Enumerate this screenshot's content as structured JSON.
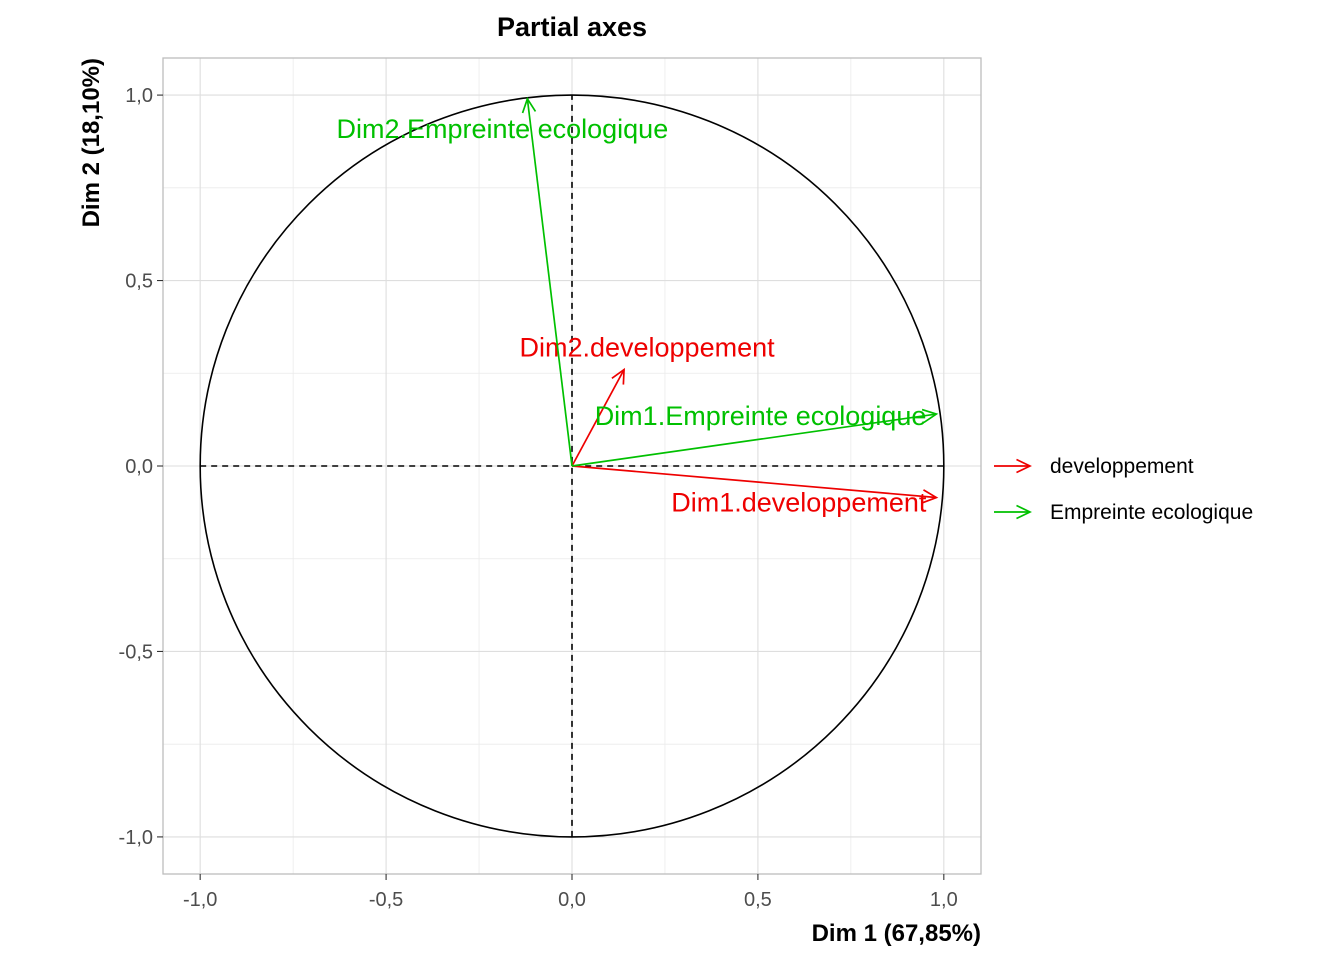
{
  "chart_data": {
    "type": "scatter",
    "subtype": "correlation-circle",
    "title": "Partial axes",
    "xlabel": "Dim 1 (67,85%)",
    "ylabel": "Dim 2 (18,10%)",
    "xlim": [
      -1.1,
      1.1
    ],
    "ylim": [
      -1.1,
      1.1
    ],
    "xticks": [
      -1.0,
      -0.5,
      0.0,
      0.5,
      1.0
    ],
    "yticks": [
      -1.0,
      -0.5,
      0.0,
      0.5,
      1.0
    ],
    "xtick_labels": [
      "-1,0",
      "-0,5",
      "0,0",
      "0,5",
      "1,0"
    ],
    "ytick_labels": [
      "-1,0",
      "-0,5",
      "0,0",
      "0,5",
      "1,0"
    ],
    "grid": true,
    "unit_circle": true,
    "reference_lines": "dashed lines at x=0 and y=0",
    "legend_position": "right",
    "groups": [
      {
        "name": "developpement",
        "color": "#ee0000"
      },
      {
        "name": "Empreinte ecologique",
        "color": "#00c000"
      }
    ],
    "vectors": [
      {
        "label": "Dim1.developpement",
        "group": "developpement",
        "x": 0.98,
        "y": -0.085
      },
      {
        "label": "Dim2.developpement",
        "group": "developpement",
        "x": 0.14,
        "y": 0.26
      },
      {
        "label": "Dim1.Empreinte ecologique",
        "group": "Empreinte ecologique",
        "x": 0.98,
        "y": 0.14
      },
      {
        "label": "Dim2.Empreinte ecologique",
        "group": "Empreinte ecologique",
        "x": -0.12,
        "y": 0.99
      }
    ]
  }
}
